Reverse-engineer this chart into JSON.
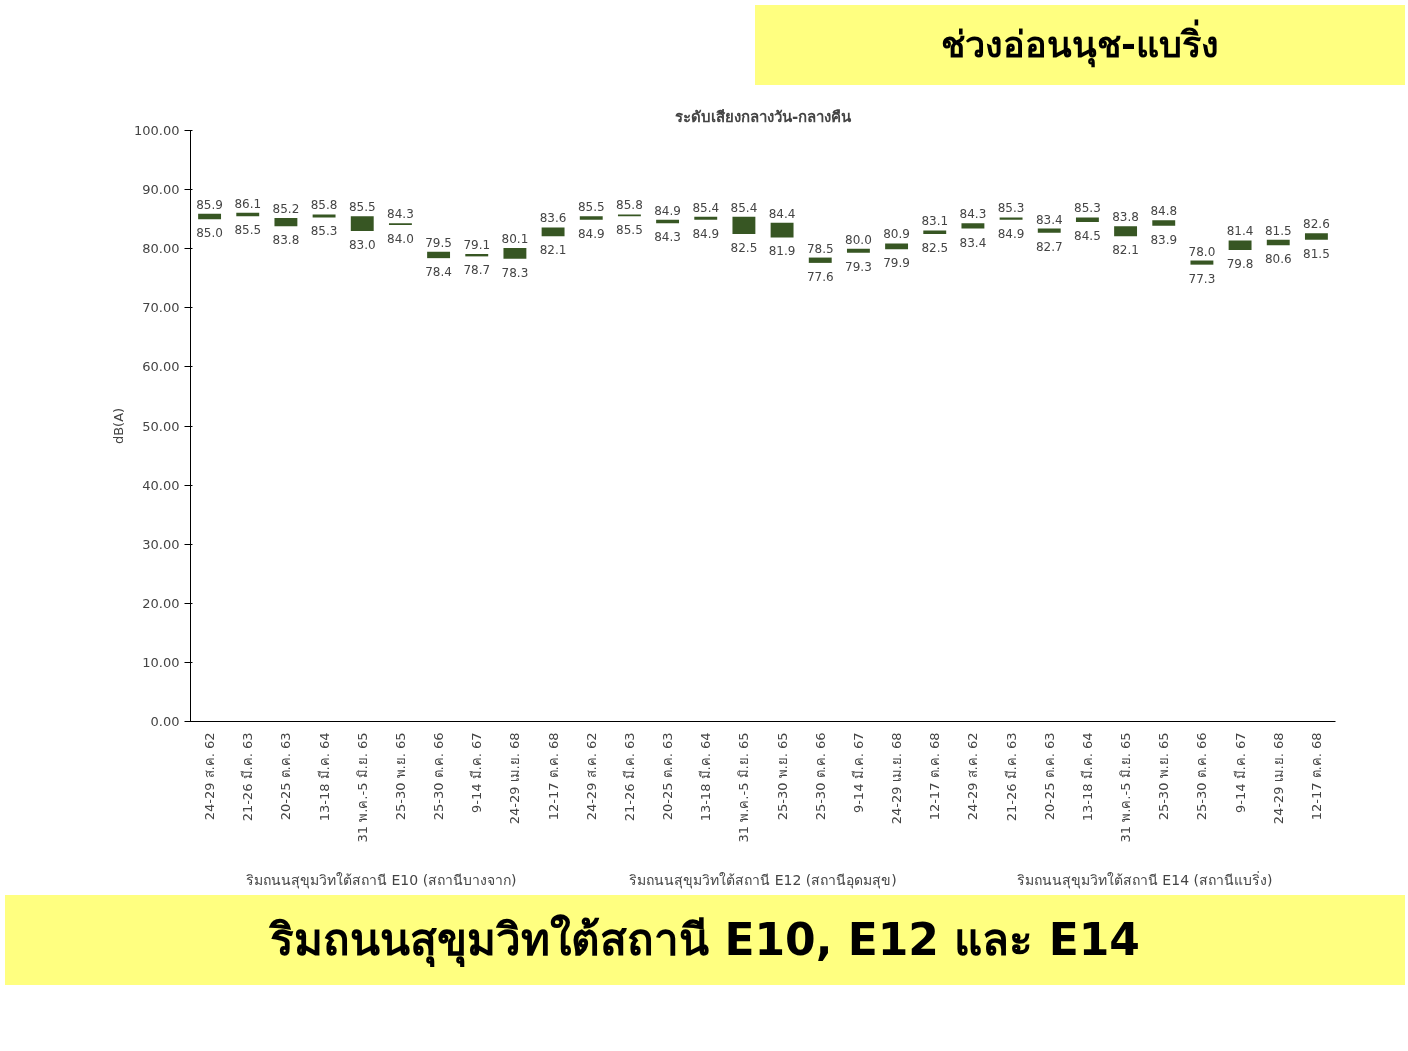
{
  "chart_data": {
    "type": "bar",
    "title": "ระดับเสียงกลางวัน-กลางคืน",
    "subtitle": "ช่วงอ่อนนุช-แบริ่ง",
    "ylabel": "dB(A)",
    "categories": [
      "24-29 ส.ค. 62",
      "21-26 มี.ค. 63",
      "20-25 ต.ค. 63",
      "13-18 มี.ค. 64",
      "31 พ.ค.-5 มิ.ย. 65",
      "25-30 พ.ย. 65",
      "25-30 ต.ค. 66",
      "9-14 มี.ค. 67",
      "24-29 เม.ย. 68",
      "12-17 ต.ค. 68",
      "24-29 ส.ค. 62",
      "21-26 มี.ค. 63",
      "20-25 ต.ค. 63",
      "13-18 มี.ค. 64",
      "31 พ.ค.-5 มิ.ย. 65",
      "25-30 พ.ย. 65",
      "25-30 ต.ค. 66",
      "9-14 มี.ค. 67",
      "24-29 เม.ย. 68",
      "12-17 ต.ค. 68",
      "24-29 ส.ค. 62",
      "21-26 มี.ค. 63",
      "20-25 ต.ค. 63",
      "13-18 มี.ค. 64",
      "31 พ.ค.-5 มิ.ย. 65",
      "25-30 พ.ย. 65",
      "25-30 ต.ค. 66",
      "9-14 มี.ค. 67",
      "24-29 เม.ย. 68",
      "12-17 ต.ค. 68"
    ],
    "base": [
      85.0,
      85.5,
      83.8,
      85.3,
      83.0,
      84.0,
      78.4,
      78.7,
      78.3,
      82.1,
      84.9,
      85.5,
      84.3,
      84.9,
      82.5,
      81.9,
      77.6,
      79.3,
      79.9,
      82.5,
      83.4,
      84.9,
      82.7,
      84.5,
      82.1,
      83.9,
      77.3,
      79.8,
      80.6,
      81.5
    ],
    "values": [
      0.9,
      0.6,
      1.4,
      0.5,
      2.5,
      0.3,
      1.1,
      0.4,
      1.8,
      1.5,
      0.6,
      0.3,
      0.6,
      0.5,
      2.9,
      2.5,
      0.9,
      0.7,
      1.0,
      0.6,
      0.9,
      0.4,
      0.7,
      0.8,
      1.7,
      0.9,
      0.7,
      1.6,
      0.9,
      1.1
    ],
    "value_labels": [
      "85.9",
      "86.1",
      "85.2",
      "85.8",
      "85.5",
      "84.3",
      "79.5",
      "79.1",
      "80.1",
      "83.6",
      "85.5",
      "85.8",
      "84.9",
      "85.4",
      "85.4",
      "84.4",
      "78.5",
      "80.0",
      "80.9",
      "83.1",
      "84.3",
      "85.3",
      "83.4",
      "85.3",
      "83.8",
      "84.8",
      "78.0",
      "81.4",
      "81.5",
      "82.6"
    ],
    "color": "#375623",
    "ylim": [
      0,
      100
    ],
    "yticks": [
      {
        "value": 0,
        "label": "0.00"
      },
      {
        "value": 10,
        "label": "10.00"
      },
      {
        "value": 20,
        "label": "20.00"
      },
      {
        "value": 30,
        "label": "30.00"
      },
      {
        "value": 40,
        "label": "40.00"
      },
      {
        "value": 50,
        "label": "50.00"
      },
      {
        "value": 60,
        "label": "60.00"
      },
      {
        "value": 70,
        "label": "70.00"
      },
      {
        "value": 80,
        "label": "80.00"
      },
      {
        "value": 90,
        "label": "90.00"
      },
      {
        "value": 100,
        "label": "100.00"
      }
    ],
    "annotations": [
      "ริมถนนสุขุมวิทใต้สถานี E10 (สถานีบางจาก)",
      "ริมถนนสุขุมวิทใต้สถานี E12 (สถานีอุดมสุข)",
      "ริมถนนสุขุมวิทใต้สถานี E14 (สถานีแบริ่ง)",
      "ริมถนนสุขุมวิทใต้สถานี E10, E12 และ E14",
      "85.0",
      "85.5",
      "83.8",
      "85.3",
      "83.0",
      "84.0",
      "78.4",
      "78.7",
      "78.3",
      "82.1",
      "84.9",
      "85.5",
      "84.3",
      "84.9",
      "82.5",
      "81.9",
      "77.6",
      "79.3",
      "79.9",
      "82.5",
      "83.4",
      "84.9",
      "82.7",
      "84.5",
      "82.1",
      "83.9",
      "77.3",
      "79.8",
      "80.6",
      "81.5"
    ]
  }
}
